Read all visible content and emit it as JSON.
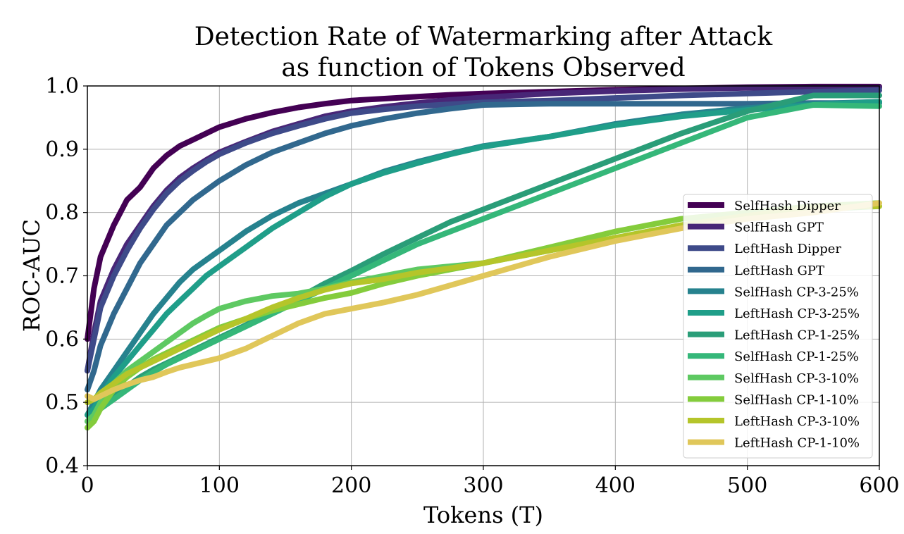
{
  "chart_data": {
    "type": "line",
    "title": "Detection Rate of Watermarking after Attack",
    "subtitle": "as function of Tokens Observed",
    "xlabel": "Tokens (T)",
    "ylabel": "ROC-AUC",
    "xlim": [
      0,
      600
    ],
    "ylim": [
      0.4,
      1.0
    ],
    "xticks": [
      "0",
      "100",
      "200",
      "300",
      "400",
      "500",
      "600"
    ],
    "yticks": [
      "0.4",
      "0.5",
      "0.6",
      "0.7",
      "0.8",
      "0.9",
      "1.0"
    ],
    "grid": true,
    "legend_position": "center-right",
    "x": [
      0,
      5,
      10,
      20,
      30,
      40,
      50,
      60,
      70,
      80,
      90,
      100,
      120,
      140,
      160,
      180,
      200,
      225,
      250,
      275,
      300,
      350,
      400,
      450,
      500,
      550,
      600
    ],
    "series": [
      {
        "name": "SelfHash Dipper",
        "color": "#440154",
        "values": [
          0.6,
          0.68,
          0.73,
          0.78,
          0.82,
          0.84,
          0.87,
          0.89,
          0.905,
          0.915,
          0.925,
          0.935,
          0.948,
          0.958,
          0.966,
          0.972,
          0.977,
          0.98,
          0.983,
          0.986,
          0.988,
          0.991,
          0.994,
          0.996,
          0.998,
          0.999,
          0.999
        ]
      },
      {
        "name": "SelfHash GPT",
        "color": "#482677",
        "values": [
          0.55,
          0.61,
          0.66,
          0.71,
          0.75,
          0.78,
          0.81,
          0.835,
          0.855,
          0.87,
          0.883,
          0.895,
          0.912,
          0.928,
          0.94,
          0.952,
          0.96,
          0.967,
          0.973,
          0.978,
          0.982,
          0.988,
          0.992,
          0.995,
          0.997,
          0.997,
          0.997
        ]
      },
      {
        "name": "LeftHash Dipper",
        "color": "#3e4a89",
        "values": [
          0.55,
          0.6,
          0.65,
          0.7,
          0.74,
          0.775,
          0.805,
          0.83,
          0.85,
          0.866,
          0.88,
          0.892,
          0.91,
          0.925,
          0.937,
          0.948,
          0.957,
          0.963,
          0.968,
          0.971,
          0.974,
          0.977,
          0.981,
          0.985,
          0.988,
          0.991,
          0.993
        ]
      },
      {
        "name": "LeftHash GPT",
        "color": "#31688e",
        "values": [
          0.52,
          0.55,
          0.59,
          0.64,
          0.68,
          0.72,
          0.75,
          0.78,
          0.8,
          0.82,
          0.835,
          0.85,
          0.875,
          0.895,
          0.91,
          0.925,
          0.937,
          0.948,
          0.957,
          0.964,
          0.97,
          0.972,
          0.972,
          0.972,
          0.972,
          0.973,
          0.973
        ]
      },
      {
        "name": "SelfHash CP-3-25%",
        "color": "#26828e",
        "values": [
          0.48,
          0.5,
          0.52,
          0.55,
          0.58,
          0.61,
          0.64,
          0.665,
          0.69,
          0.71,
          0.725,
          0.74,
          0.77,
          0.795,
          0.815,
          0.83,
          0.845,
          0.865,
          0.88,
          0.893,
          0.905,
          0.92,
          0.94,
          0.955,
          0.965,
          0.972,
          0.975
        ]
      },
      {
        "name": "LeftHash CP-3-25%",
        "color": "#1f9e89",
        "values": [
          0.48,
          0.49,
          0.51,
          0.54,
          0.565,
          0.59,
          0.615,
          0.64,
          0.66,
          0.68,
          0.7,
          0.715,
          0.745,
          0.775,
          0.8,
          0.825,
          0.845,
          0.863,
          0.878,
          0.892,
          0.904,
          0.92,
          0.938,
          0.952,
          0.962,
          0.97,
          0.975
        ]
      },
      {
        "name": "LeftHash CP-1-25%",
        "color": "#2a9d78",
        "values": [
          0.47,
          0.48,
          0.495,
          0.51,
          0.525,
          0.54,
          0.552,
          0.562,
          0.572,
          0.582,
          0.592,
          0.602,
          0.622,
          0.645,
          0.665,
          0.688,
          0.708,
          0.735,
          0.76,
          0.785,
          0.805,
          0.845,
          0.885,
          0.925,
          0.96,
          0.985,
          0.985
        ]
      },
      {
        "name": "SelfHash CP-1-25%",
        "color": "#35b779",
        "values": [
          0.46,
          0.475,
          0.49,
          0.505,
          0.52,
          0.535,
          0.548,
          0.56,
          0.57,
          0.58,
          0.59,
          0.6,
          0.62,
          0.64,
          0.66,
          0.68,
          0.7,
          0.725,
          0.75,
          0.77,
          0.79,
          0.83,
          0.87,
          0.91,
          0.95,
          0.97,
          0.968
        ]
      },
      {
        "name": "SelfHash CP-3-10%",
        "color": "#5ec962",
        "values": [
          0.47,
          0.48,
          0.5,
          0.53,
          0.55,
          0.565,
          0.58,
          0.595,
          0.61,
          0.625,
          0.637,
          0.648,
          0.66,
          0.668,
          0.672,
          0.68,
          0.69,
          0.7,
          0.71,
          0.715,
          0.72,
          0.74,
          0.76,
          0.78,
          0.795,
          0.805,
          0.81
        ]
      },
      {
        "name": "SelfHash CP-1-10%",
        "color": "#84cc3c",
        "values": [
          0.46,
          0.47,
          0.49,
          0.52,
          0.54,
          0.555,
          0.568,
          0.578,
          0.588,
          0.598,
          0.608,
          0.618,
          0.632,
          0.645,
          0.655,
          0.665,
          0.673,
          0.688,
          0.7,
          0.71,
          0.72,
          0.745,
          0.77,
          0.79,
          0.8,
          0.81,
          0.815
        ]
      },
      {
        "name": "LeftHash CP-3-10%",
        "color": "#b5c52a",
        "values": [
          0.5,
          0.505,
          0.515,
          0.53,
          0.545,
          0.555,
          0.565,
          0.575,
          0.585,
          0.595,
          0.605,
          0.615,
          0.632,
          0.65,
          0.665,
          0.678,
          0.688,
          0.695,
          0.705,
          0.712,
          0.72,
          0.74,
          0.76,
          0.78,
          0.795,
          0.808,
          0.81
        ]
      },
      {
        "name": "LeftHash CP-1-10%",
        "color": "#e0c75a",
        "values": [
          0.51,
          0.505,
          0.51,
          0.52,
          0.528,
          0.535,
          0.54,
          0.548,
          0.555,
          0.56,
          0.565,
          0.57,
          0.585,
          0.605,
          0.625,
          0.64,
          0.648,
          0.658,
          0.67,
          0.685,
          0.7,
          0.73,
          0.755,
          0.775,
          0.79,
          0.8,
          0.815
        ]
      }
    ]
  }
}
